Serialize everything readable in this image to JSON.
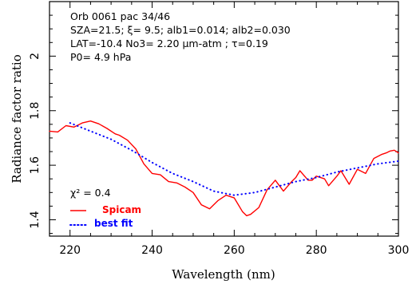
{
  "chart_data": {
    "type": "line",
    "xlabel": "Wavelength (nm)",
    "ylabel": "Radiance factor ratio",
    "xlim": [
      215,
      300
    ],
    "ylim": [
      1.34,
      2.2
    ],
    "x_ticks": [
      220,
      240,
      260,
      280,
      300
    ],
    "x_tick_labels": [
      "220",
      "240",
      "260",
      "280",
      "300"
    ],
    "y_ticks": [
      1.4,
      1.6,
      1.8,
      2.0
    ],
    "y_tick_labels": [
      "1.4",
      "1.6",
      "1.8",
      "2"
    ],
    "grid": false,
    "legend_position": "bottom-left",
    "annotations": [
      "Orb 0061 pac 34/46",
      "SZA=21.5; ξ= 9.5; alb1=0.014; alb2=0.030",
      "LAT=-10.4     No3= 2.20 µm-atm ; τ=0.19",
      "P0= 4.9 hPa"
    ],
    "chi2_label": "χ² = 0.4",
    "series": [
      {
        "name": "Spicam",
        "color": "#ff0000",
        "style": "solid",
        "x": [
          215,
          217,
          219,
          221,
          223,
          225,
          227,
          229,
          231,
          232,
          234,
          236,
          238,
          240,
          242,
          244,
          246,
          248,
          250,
          252,
          254,
          256,
          258,
          260,
          262,
          263,
          264,
          266,
          268,
          270,
          272,
          274,
          275,
          276,
          278,
          279,
          280,
          282,
          283,
          285,
          286,
          288,
          290,
          292,
          294,
          296,
          297,
          298,
          299,
          300
        ],
        "y": [
          1.725,
          1.722,
          1.745,
          1.74,
          1.755,
          1.762,
          1.752,
          1.735,
          1.715,
          1.71,
          1.692,
          1.66,
          1.605,
          1.57,
          1.565,
          1.54,
          1.535,
          1.52,
          1.5,
          1.455,
          1.44,
          1.47,
          1.49,
          1.48,
          1.43,
          1.415,
          1.42,
          1.445,
          1.51,
          1.545,
          1.505,
          1.54,
          1.555,
          1.58,
          1.545,
          1.545,
          1.56,
          1.55,
          1.525,
          1.56,
          1.58,
          1.53,
          1.585,
          1.57,
          1.625,
          1.64,
          1.645,
          1.652,
          1.655,
          1.645
        ]
      },
      {
        "name": "best fit",
        "color": "#0000ff",
        "style": "dotted",
        "x": [
          220,
          225,
          230,
          235,
          240,
          245,
          250,
          255,
          260,
          265,
          270,
          275,
          280,
          285,
          290,
          295,
          300
        ],
        "y": [
          1.755,
          1.725,
          1.695,
          1.655,
          1.61,
          1.57,
          1.54,
          1.505,
          1.49,
          1.5,
          1.52,
          1.54,
          1.555,
          1.575,
          1.59,
          1.605,
          1.615
        ]
      }
    ]
  }
}
